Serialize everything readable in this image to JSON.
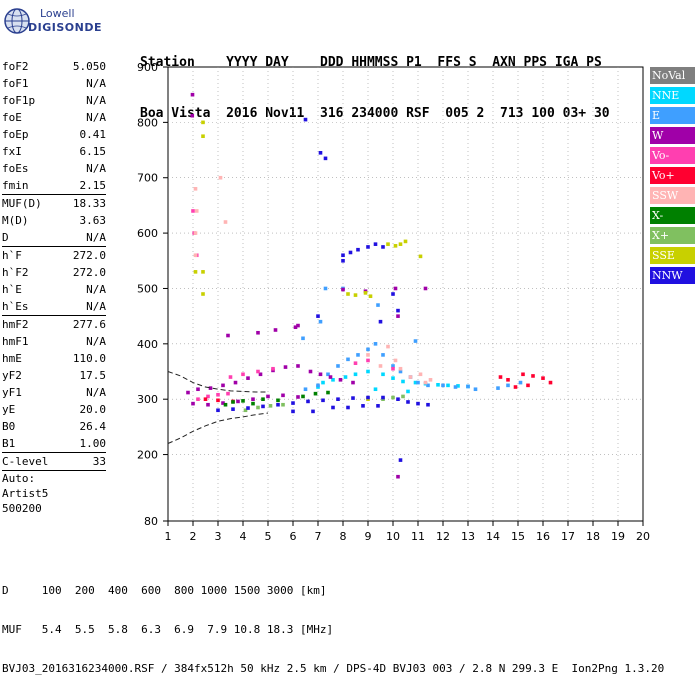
{
  "logo": {
    "line1": "Lowell",
    "line2": "DIGISONDE"
  },
  "header": {
    "row1": "Station    YYYY DAY    DDD HHMMSS P1  FFS S  AXN PPS IGA PS",
    "row2": "Boa Vista  2016 Nov11  316 234000 RSF  005 2  713 100 03+ 30"
  },
  "params": [
    {
      "key": "foF2",
      "value": "5.050"
    },
    {
      "key": "foF1",
      "value": "N/A"
    },
    {
      "key": "foF1p",
      "value": "N/A"
    },
    {
      "key": "foE",
      "value": "N/A"
    },
    {
      "key": "foEp",
      "value": "0.41"
    },
    {
      "key": "fxI",
      "value": "6.15"
    },
    {
      "key": "foEs",
      "value": "N/A"
    },
    {
      "key": "fmin",
      "value": "2.15"
    },
    {
      "divider": true
    },
    {
      "key": "MUF(D)",
      "value": "18.33"
    },
    {
      "key": "M(D)",
      "value": "3.63"
    },
    {
      "key": "D",
      "value": "N/A"
    },
    {
      "divider": true
    },
    {
      "key": "h`F",
      "value": "272.0"
    },
    {
      "key": "h`F2",
      "value": "272.0"
    },
    {
      "key": "h`E",
      "value": "N/A"
    },
    {
      "key": "h`Es",
      "value": "N/A"
    },
    {
      "divider": true
    },
    {
      "key": "hmF2",
      "value": "277.6"
    },
    {
      "key": "hmF1",
      "value": "N/A"
    },
    {
      "key": "hmE",
      "value": "110.0"
    },
    {
      "key": "yF2",
      "value": "17.5"
    },
    {
      "key": "yF1",
      "value": "N/A"
    },
    {
      "key": "yE",
      "value": "20.0"
    },
    {
      "key": "B0",
      "value": "26.4"
    },
    {
      "key": "B1",
      "value": "1.00"
    },
    {
      "divider": true
    },
    {
      "key": "C-level",
      "value": "33"
    },
    {
      "divider": true
    }
  ],
  "auto": {
    "line1": "Auto:",
    "line2": "Artist5",
    "line3": "500200"
  },
  "legend": [
    {
      "label": "NoVal",
      "color": "#7f7f7f"
    },
    {
      "label": "NNE",
      "color": "#00d8ff"
    },
    {
      "label": "E",
      "color": "#3f9fff"
    },
    {
      "label": "W",
      "color": "#a000a8"
    },
    {
      "label": "Vo-",
      "color": "#ff3fb0"
    },
    {
      "label": "Vo+",
      "color": "#ff0030"
    },
    {
      "label": "SSW",
      "color": "#ffb4b4"
    },
    {
      "label": "X-",
      "color": "#008000"
    },
    {
      "label": "X+",
      "color": "#80c060"
    },
    {
      "label": "SSE",
      "color": "#c8d000"
    },
    {
      "label": "NNW",
      "color": "#2010e0"
    }
  ],
  "bottom": {
    "line1": "D     100  200  400  600  800 1000 1500 3000 [km]",
    "line2": "MUF   5.4  5.5  5.8  6.3  6.9  7.9 10.8 18.3 [MHz]",
    "line3": "BVJ03_2016316234000.RSF / 384fx512h 50 kHz 2.5 km / DPS-4D BVJ03 003 / 2.8 N 299.3 E  Ion2Png 1.3.20"
  },
  "chart_data": {
    "type": "scatter",
    "title": "",
    "xlabel": "",
    "ylabel": "",
    "xlim": [
      1,
      20
    ],
    "ylim": [
      80,
      900
    ],
    "x_ticks": [
      1,
      2,
      3,
      4,
      5,
      6,
      7,
      8,
      9,
      10,
      11,
      12,
      13,
      14,
      15,
      16,
      17,
      18,
      19,
      20
    ],
    "y_ticks": [
      80,
      200,
      300,
      400,
      500,
      600,
      700,
      800,
      900
    ],
    "grid": "dotted",
    "legend_placement": "right",
    "series": [
      {
        "name": "NNE",
        "points": [
          [
            7.0,
            322
          ],
          [
            7.2,
            330
          ],
          [
            7.6,
            335
          ],
          [
            8.1,
            340
          ],
          [
            8.5,
            345
          ],
          [
            9.0,
            350
          ],
          [
            9.6,
            345
          ],
          [
            10.0,
            338
          ],
          [
            10.4,
            332
          ],
          [
            10.9,
            330
          ],
          [
            11.3,
            328
          ],
          [
            11.8,
            326
          ],
          [
            12.2,
            325
          ],
          [
            12.6,
            324
          ],
          [
            13.0,
            323
          ],
          [
            9.3,
            318
          ],
          [
            10.6,
            314
          ]
        ]
      },
      {
        "name": "E",
        "points": [
          [
            6.5,
            318
          ],
          [
            7.0,
            325
          ],
          [
            7.4,
            345
          ],
          [
            7.8,
            360
          ],
          [
            8.2,
            372
          ],
          [
            8.6,
            380
          ],
          [
            9.0,
            390
          ],
          [
            9.3,
            400
          ],
          [
            9.6,
            380
          ],
          [
            10.0,
            360
          ],
          [
            10.3,
            350
          ],
          [
            10.7,
            340
          ],
          [
            11.0,
            330
          ],
          [
            11.4,
            325
          ],
          [
            12.0,
            325
          ],
          [
            12.5,
            322
          ],
          [
            13.0,
            323
          ],
          [
            13.3,
            318
          ],
          [
            14.2,
            320
          ],
          [
            14.6,
            325
          ],
          [
            15.1,
            330
          ],
          [
            6.4,
            410
          ],
          [
            7.1,
            440
          ],
          [
            7.3,
            500
          ],
          [
            8.0,
            500
          ],
          [
            9.4,
            470
          ],
          [
            10.9,
            405
          ]
        ]
      },
      {
        "name": "W",
        "points": [
          [
            1.8,
            312
          ],
          [
            2.2,
            318
          ],
          [
            2.7,
            320
          ],
          [
            3.2,
            325
          ],
          [
            3.7,
            330
          ],
          [
            4.2,
            338
          ],
          [
            4.7,
            345
          ],
          [
            5.2,
            352
          ],
          [
            5.7,
            358
          ],
          [
            6.2,
            360
          ],
          [
            6.7,
            350
          ],
          [
            7.1,
            345
          ],
          [
            7.5,
            340
          ],
          [
            7.9,
            335
          ],
          [
            8.4,
            330
          ],
          [
            2.0,
            292
          ],
          [
            2.6,
            290
          ],
          [
            3.2,
            293
          ],
          [
            3.8,
            296
          ],
          [
            4.4,
            300
          ],
          [
            5.0,
            305
          ],
          [
            5.6,
            307
          ],
          [
            6.2,
            304
          ],
          [
            1.98,
            850
          ],
          [
            1.97,
            812
          ],
          [
            3.4,
            415
          ],
          [
            4.6,
            420
          ],
          [
            5.3,
            425
          ],
          [
            6.1,
            430
          ],
          [
            6.2,
            433
          ],
          [
            8.0,
            498
          ],
          [
            8.9,
            495
          ],
          [
            10.1,
            500
          ],
          [
            10.2,
            450
          ],
          [
            10.2,
            160
          ],
          [
            11.3,
            500
          ]
        ]
      },
      {
        "name": "Vo-",
        "points": [
          [
            2.2,
            300
          ],
          [
            2.6,
            305
          ],
          [
            3.0,
            308
          ],
          [
            3.4,
            310
          ],
          [
            2.0,
            640
          ],
          [
            2.05,
            600
          ],
          [
            2.15,
            560
          ],
          [
            3.5,
            340
          ],
          [
            4.0,
            345
          ],
          [
            4.6,
            350
          ],
          [
            5.2,
            355
          ],
          [
            8.5,
            365
          ],
          [
            9.0,
            370
          ],
          [
            10.0,
            355
          ]
        ]
      },
      {
        "name": "Vo+",
        "points": [
          [
            2.5,
            300
          ],
          [
            3.0,
            298
          ],
          [
            3.6,
            296
          ],
          [
            14.3,
            340
          ],
          [
            14.6,
            335
          ],
          [
            15.2,
            345
          ],
          [
            15.6,
            342
          ],
          [
            16.0,
            338
          ],
          [
            16.3,
            330
          ],
          [
            14.9,
            322
          ],
          [
            15.4,
            325
          ]
        ]
      },
      {
        "name": "SSW",
        "points": [
          [
            2.1,
            680
          ],
          [
            2.15,
            640
          ],
          [
            2.1,
            600
          ],
          [
            2.1,
            560
          ],
          [
            3.1,
            700
          ],
          [
            3.3,
            620
          ],
          [
            9.0,
            380
          ],
          [
            9.5,
            360
          ],
          [
            9.8,
            395
          ],
          [
            10.1,
            370
          ],
          [
            10.3,
            355
          ],
          [
            10.7,
            340
          ],
          [
            11.1,
            345
          ],
          [
            11.3,
            330
          ],
          [
            11.5,
            335
          ]
        ]
      },
      {
        "name": "X-",
        "points": [
          [
            3.3,
            290
          ],
          [
            3.6,
            295
          ],
          [
            4.0,
            297
          ],
          [
            4.4,
            292
          ],
          [
            4.8,
            300
          ],
          [
            5.4,
            298
          ],
          [
            6.4,
            305
          ],
          [
            6.9,
            310
          ],
          [
            7.4,
            312
          ]
        ]
      },
      {
        "name": "X+",
        "points": [
          [
            4.1,
            280
          ],
          [
            4.6,
            285
          ],
          [
            5.1,
            288
          ],
          [
            5.6,
            290
          ],
          [
            9.6,
            300
          ],
          [
            10.0,
            303
          ],
          [
            10.4,
            305
          ]
        ]
      },
      {
        "name": "SSE",
        "points": [
          [
            2.1,
            530
          ],
          [
            2.4,
            530
          ],
          [
            2.4,
            490
          ],
          [
            2.4,
            800
          ],
          [
            2.4,
            775
          ],
          [
            8.2,
            490
          ],
          [
            8.5,
            488
          ],
          [
            8.9,
            492
          ],
          [
            9.1,
            486
          ],
          [
            9.8,
            580
          ],
          [
            10.1,
            577
          ],
          [
            10.3,
            580
          ],
          [
            10.5,
            585
          ],
          [
            11.1,
            558
          ],
          [
            9.0,
            300
          ]
        ]
      },
      {
        "name": "NNW",
        "points": [
          [
            3.0,
            280
          ],
          [
            3.6,
            282
          ],
          [
            4.2,
            284
          ],
          [
            4.8,
            287
          ],
          [
            5.4,
            290
          ],
          [
            6.0,
            293
          ],
          [
            6.6,
            296
          ],
          [
            7.2,
            298
          ],
          [
            7.8,
            300
          ],
          [
            8.4,
            302
          ],
          [
            9.0,
            303
          ],
          [
            9.6,
            303
          ],
          [
            10.2,
            300
          ],
          [
            10.6,
            295
          ],
          [
            11.0,
            292
          ],
          [
            11.4,
            290
          ],
          [
            6.0,
            278
          ],
          [
            6.8,
            278
          ],
          [
            7.6,
            285
          ],
          [
            8.2,
            285
          ],
          [
            8.8,
            288
          ],
          [
            9.4,
            288
          ],
          [
            8.0,
            560
          ],
          [
            8.3,
            565
          ],
          [
            8.6,
            570
          ],
          [
            9.0,
            575
          ],
          [
            9.3,
            580
          ],
          [
            9.6,
            575
          ],
          [
            8.0,
            550
          ],
          [
            9.5,
            440
          ],
          [
            10.0,
            490
          ],
          [
            10.2,
            460
          ],
          [
            7.1,
            745
          ],
          [
            7.3,
            735
          ],
          [
            7.0,
            450
          ],
          [
            10.3,
            190
          ],
          [
            6.5,
            805
          ]
        ]
      }
    ],
    "curves": [
      {
        "points": [
          [
            1,
            350
          ],
          [
            1.5,
            342
          ],
          [
            2,
            330
          ],
          [
            2.5,
            322
          ],
          [
            3,
            318
          ],
          [
            3.5,
            315
          ],
          [
            4,
            314
          ],
          [
            4.5,
            313
          ],
          [
            5,
            313
          ]
        ]
      },
      {
        "points": [
          [
            1,
            220
          ],
          [
            1.5,
            230
          ],
          [
            2,
            242
          ],
          [
            2.5,
            252
          ],
          [
            3,
            260
          ],
          [
            3.5,
            265
          ],
          [
            4,
            268
          ],
          [
            4.5,
            272
          ],
          [
            5,
            275
          ]
        ]
      }
    ]
  }
}
